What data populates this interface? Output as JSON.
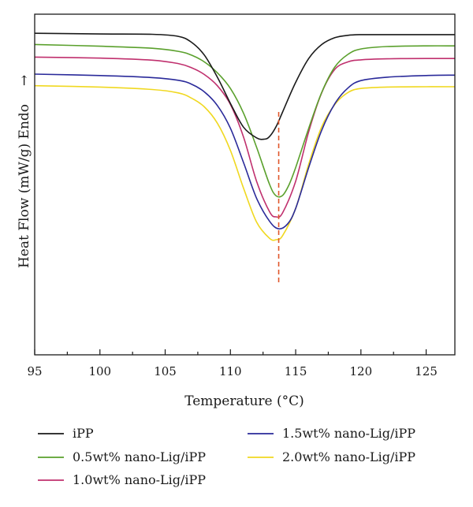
{
  "chart_data": {
    "type": "line",
    "xlabel": "Temperature (°C)",
    "ylabel": "Heat Flow (mW/g) Endo",
    "ylabel_arrow": "→",
    "xlim": [
      95,
      127.2
    ],
    "ylim": [
      0,
      1
    ],
    "x_ticks": [
      "95",
      "100",
      "105",
      "110",
      "115",
      "120",
      "125"
    ],
    "x_tick_values": [
      95,
      100,
      105,
      110,
      115,
      120,
      125
    ],
    "y_ticks_labeled": false,
    "grid": false,
    "legend_position": "bottom",
    "vline": {
      "x": 113.7,
      "style": "dashed",
      "color": "#e0562b"
    },
    "series": [
      {
        "name": "iPP",
        "color": "#1a1a1a",
        "x": [
          95,
          100,
          104,
          106,
          107,
          108,
          109,
          110,
          111,
          112,
          112.6,
          113,
          113.5,
          114,
          115,
          116,
          117,
          118,
          119,
          120,
          122,
          125,
          127.2
        ],
        "y": [
          0.944,
          0.942,
          0.941,
          0.935,
          0.918,
          0.88,
          0.815,
          0.738,
          0.6685,
          0.637,
          0.633,
          0.641,
          0.67,
          0.713,
          0.8,
          0.87,
          0.911,
          0.931,
          0.938,
          0.94,
          0.94,
          0.94,
          0.94
        ]
      },
      {
        "name": "0.5wt% nano-Lig/iPP",
        "color": "#5aa02c",
        "x": [
          95,
          100,
          104,
          106,
          107,
          108,
          109,
          110,
          111,
          112,
          113,
          113.5,
          114,
          114.5,
          115,
          116,
          117,
          118,
          119,
          120,
          122,
          125,
          127.2
        ],
        "y": [
          0.911,
          0.906,
          0.9,
          0.891,
          0.88,
          0.86,
          0.828,
          0.782,
          0.71,
          0.61,
          0.5,
          0.467,
          0.468,
          0.5,
          0.55,
          0.665,
          0.771,
          0.845,
          0.882,
          0.898,
          0.905,
          0.907,
          0.907
        ]
      },
      {
        "name": "1.0wt% nano-Lig/iPP",
        "color": "#c0306e",
        "x": [
          95,
          100,
          104,
          106,
          107,
          108,
          109,
          110,
          111,
          112,
          113,
          113.5,
          114,
          115,
          116,
          117,
          118,
          119,
          120,
          122,
          125,
          127.2
        ],
        "y": [
          0.874,
          0.871,
          0.865,
          0.855,
          0.843,
          0.823,
          0.79,
          0.735,
          0.64,
          0.51,
          0.42,
          0.405,
          0.417,
          0.51,
          0.655,
          0.77,
          0.838,
          0.86,
          0.866,
          0.869,
          0.87,
          0.87
        ]
      },
      {
        "name": "1.5wt% nano-Lig/iPP",
        "color": "#2a2a9a",
        "x": [
          95,
          100,
          104,
          106,
          107,
          108,
          109,
          110,
          111,
          112,
          113,
          113.7,
          114.4,
          115,
          116,
          117,
          118,
          119,
          120,
          122,
          125,
          127.2
        ],
        "y": [
          0.824,
          0.82,
          0.814,
          0.806,
          0.795,
          0.772,
          0.732,
          0.665,
          0.565,
          0.46,
          0.392,
          0.37,
          0.385,
          0.43,
          0.55,
          0.66,
          0.737,
          0.783,
          0.805,
          0.815,
          0.82,
          0.821
        ]
      },
      {
        "name": "2.0wt% nano-Lig/iPP",
        "color": "#f0d820",
        "x": [
          95,
          100,
          104,
          106,
          107,
          108,
          109,
          110,
          111,
          112,
          113,
          113.5,
          114,
          115,
          116,
          117,
          118,
          119,
          120,
          122,
          125,
          127.2
        ],
        "y": [
          0.79,
          0.786,
          0.779,
          0.769,
          0.754,
          0.728,
          0.68,
          0.6,
          0.49,
          0.39,
          0.342,
          0.338,
          0.35,
          0.43,
          0.56,
          0.67,
          0.735,
          0.77,
          0.782,
          0.786,
          0.787,
          0.787
        ]
      }
    ]
  }
}
